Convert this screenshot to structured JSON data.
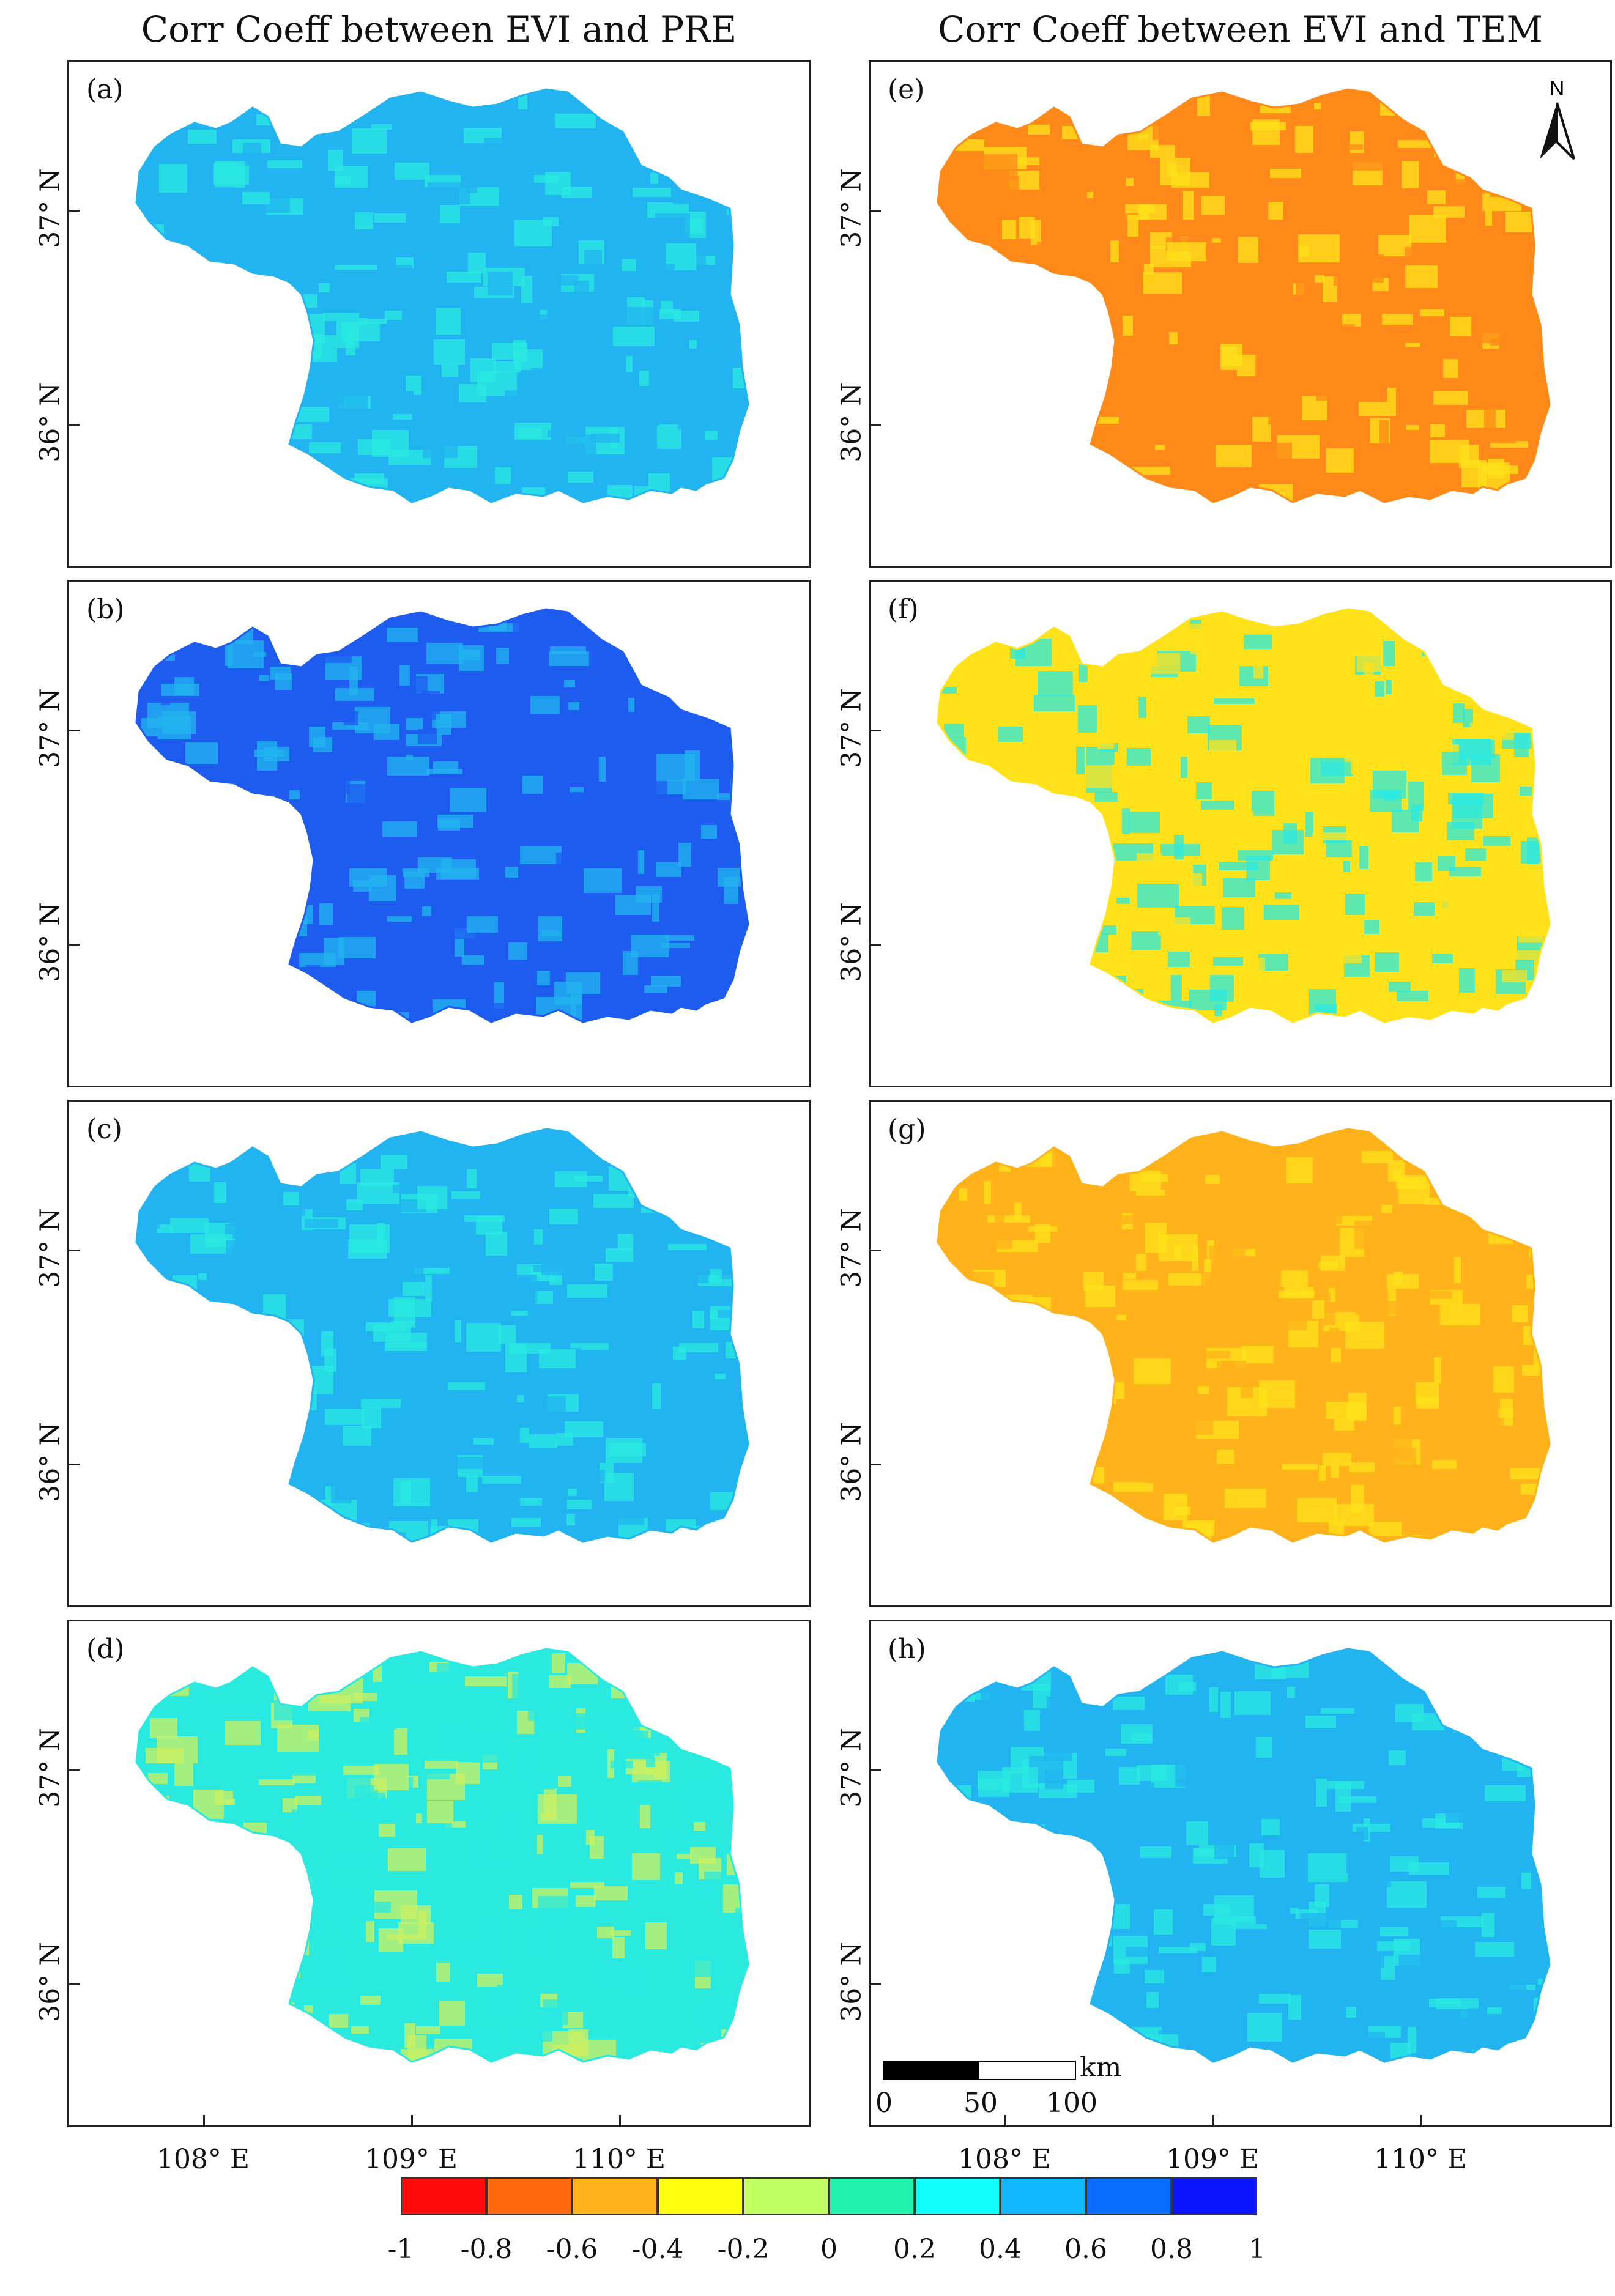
{
  "titles": {
    "left": "Corr Coeff between EVI and PRE",
    "right": "Corr Coeff between EVI and TEM"
  },
  "panels": [
    {
      "label": "(a)",
      "column": "left",
      "row": 0,
      "dominant_color": "#22b4f0",
      "secondary_color": "#2aeae0"
    },
    {
      "label": "(b)",
      "column": "left",
      "row": 1,
      "dominant_color": "#1e5cf0",
      "secondary_color": "#22b4f0"
    },
    {
      "label": "(c)",
      "column": "left",
      "row": 2,
      "dominant_color": "#22b4f0",
      "secondary_color": "#2aeae0"
    },
    {
      "label": "(d)",
      "column": "left",
      "row": 3,
      "dominant_color": "#2aeae0",
      "secondary_color": "#ccf060"
    },
    {
      "label": "(e)",
      "column": "right",
      "row": 0,
      "dominant_color": "#ff8a1a",
      "secondary_color": "#ffe21a"
    },
    {
      "label": "(f)",
      "column": "right",
      "row": 1,
      "dominant_color": "#ffe21a",
      "secondary_color": "#2aeae0"
    },
    {
      "label": "(g)",
      "column": "right",
      "row": 2,
      "dominant_color": "#ffb21a",
      "secondary_color": "#ffe21a"
    },
    {
      "label": "(h)",
      "column": "right",
      "row": 3,
      "dominant_color": "#22b4f0",
      "secondary_color": "#2aeae0"
    }
  ],
  "axes": {
    "y_labels": [
      "37° N",
      "36° N"
    ],
    "x_labels": [
      "108° E",
      "109° E",
      "110° E"
    ]
  },
  "north_arrow": {
    "label": "N"
  },
  "scale_bar": {
    "unit": "km",
    "ticks": [
      "0",
      "50",
      "100"
    ]
  },
  "legend": {
    "labels": [
      "-1",
      "-0.8",
      "-0.6",
      "-0.4",
      "-0.2",
      "0",
      "0.2",
      "0.4",
      "0.6",
      "0.8",
      "1"
    ],
    "colors": [
      "#ff0a0a",
      "#ff6a0f",
      "#ffb21a",
      "#ffff10",
      "#c2ff60",
      "#22f2b0",
      "#10ffff",
      "#10b8ff",
      "#0a6cff",
      "#0a14ff"
    ]
  }
}
